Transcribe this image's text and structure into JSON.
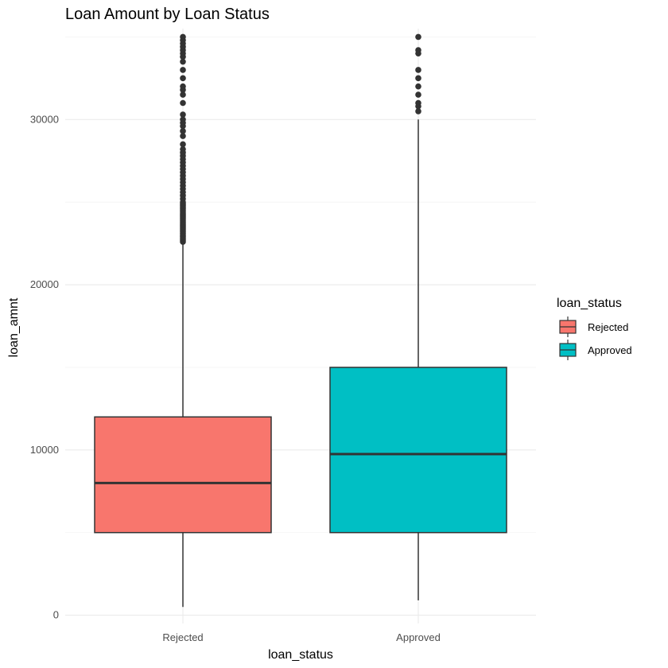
{
  "chart_data": {
    "type": "box",
    "title": "Loan Amount by Loan Status",
    "xlabel": "loan_status",
    "ylabel": "loan_amnt",
    "ylim": [
      -500,
      35500
    ],
    "yticks": [
      0,
      10000,
      20000,
      30000
    ],
    "ytick_labels": [
      "0",
      "10000",
      "20000",
      "30000"
    ],
    "grid": true,
    "legend": {
      "title": "loan_status",
      "placement": "right"
    },
    "categories": [
      "Rejected",
      "Approved"
    ],
    "series": [
      {
        "name": "Rejected",
        "color": "#F8766D",
        "min": 500,
        "q1": 5000,
        "median": 8000,
        "q3": 12000,
        "whisker_high": 22500,
        "outliers": [
          22600,
          22700,
          22800,
          22900,
          23000,
          23100,
          23200,
          23300,
          23400,
          23500,
          23600,
          23700,
          23800,
          23900,
          24000,
          24100,
          24200,
          24300,
          24400,
          24500,
          24600,
          24700,
          24800,
          24900,
          25000,
          25200,
          25400,
          25600,
          25800,
          26000,
          26200,
          26400,
          26600,
          26800,
          27000,
          27200,
          27400,
          27600,
          27800,
          28000,
          28200,
          28500,
          29000,
          29300,
          29600,
          29800,
          30000,
          30300,
          31000,
          31500,
          31800,
          32000,
          32500,
          33000,
          33500,
          33800,
          34000,
          34200,
          34400,
          34600,
          34800,
          35000
        ]
      },
      {
        "name": "Approved",
        "color": "#00BFC4",
        "min": 900,
        "q1": 5000,
        "median": 9750,
        "q3": 15000,
        "whisker_high": 30000,
        "outliers": [
          30500,
          30800,
          31000,
          31500,
          32000,
          32500,
          33000,
          34000,
          34200,
          35000
        ]
      }
    ]
  }
}
